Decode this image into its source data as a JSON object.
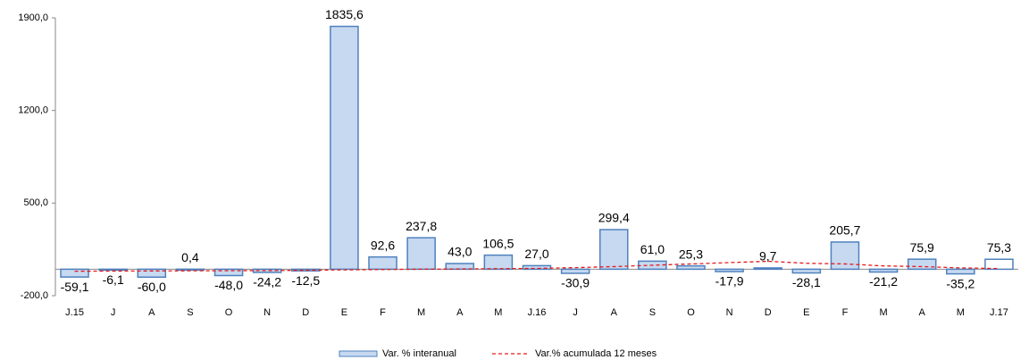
{
  "chart_data": {
    "type": "bar",
    "categories": [
      "J.15",
      "J",
      "A",
      "S",
      "O",
      "N",
      "D",
      "E",
      "F",
      "M",
      "A",
      "M",
      "J.16",
      "J",
      "A",
      "S",
      "O",
      "N",
      "D",
      "E",
      "F",
      "M",
      "A",
      "M",
      "J.17"
    ],
    "series": [
      {
        "name": "Var. % interanual",
        "type": "bar",
        "color": "#4f81bd",
        "fill": "#c6d9f1",
        "fills": [
          "#c6d9f1",
          "#c6d9f1",
          "#c6d9f1",
          "#c6d9f1",
          "#c6d9f1",
          "#c6d9f1",
          "#c6d9f1",
          "#c6d9f1",
          "#c6d9f1",
          "#c6d9f1",
          "#c6d9f1",
          "#c6d9f1",
          "#c6d9f1",
          "#c6d9f1",
          "#c6d9f1",
          "#c6d9f1",
          "#c6d9f1",
          "#c6d9f1",
          "#c6d9f1",
          "#c6d9f1",
          "#c6d9f1",
          "#c6d9f1",
          "#c6d9f1",
          "#c6d9f1",
          "#ffffff"
        ],
        "values": [
          -59.1,
          -6.1,
          -60.0,
          0.4,
          -48.0,
          -24.2,
          -12.5,
          1835.6,
          92.6,
          237.8,
          43.0,
          106.5,
          27.0,
          -30.9,
          299.4,
          61.0,
          25.3,
          -17.9,
          9.7,
          -28.1,
          205.7,
          -21.2,
          75.9,
          -35.2,
          75.3
        ],
        "value_labels": [
          "-59,1",
          "-6,1",
          "-60,0",
          "0,4",
          "-48,0",
          "-24,2",
          "-12,5",
          "1835,6",
          "92,6",
          "237,8",
          "43,0",
          "106,5",
          "27,0",
          "-30,9",
          "299,4",
          "61,0",
          "25,3",
          "-17,9",
          "9,7",
          "-28,1",
          "205,7",
          "-21,2",
          "75,9",
          "-35,2",
          "75,3"
        ]
      },
      {
        "name": "Var.% acumulada 12 meses",
        "type": "line",
        "color": "#e41a1c",
        "dashed": true,
        "values": [
          -15,
          -14,
          -13,
          -12,
          -11,
          -10,
          -8,
          -5,
          -2,
          0,
          2,
          4,
          6,
          12,
          20,
          30,
          40,
          50,
          60,
          45,
          40,
          25,
          20,
          10,
          5
        ]
      }
    ],
    "ylim": [
      -200,
      1900
    ],
    "yticks": [
      {
        "value": -200,
        "label": "-200,0"
      },
      {
        "value": 500,
        "label": "500,0"
      },
      {
        "value": 1200,
        "label": "1200,0"
      },
      {
        "value": 1900,
        "label": "1900,0"
      }
    ],
    "grid": false,
    "legend": "bottom"
  }
}
